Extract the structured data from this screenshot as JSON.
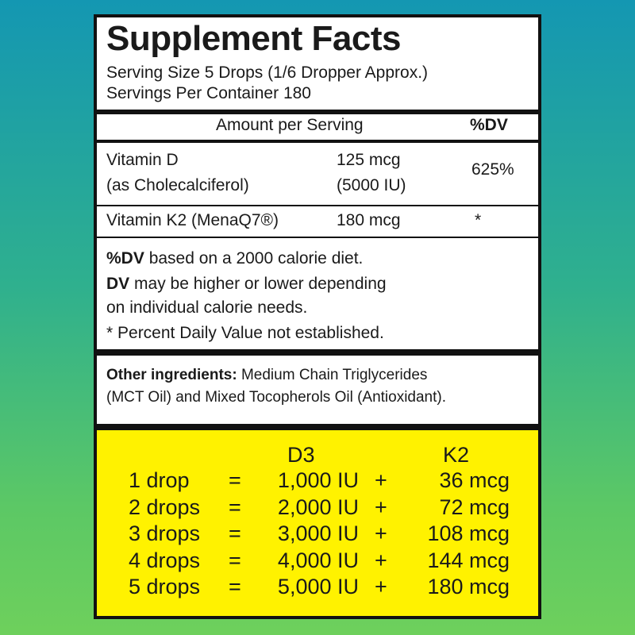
{
  "header": {
    "title": "Supplement Facts",
    "serving_size": "Serving Size 5 Drops (1/6 Dropper Approx.)",
    "servings_per_container": "Servings Per Container 180"
  },
  "columns": {
    "amount": "Amount per Serving",
    "dv": "%DV"
  },
  "nutrients": [
    {
      "name": "Vitamin D",
      "subname": "(as Cholecalciferol)",
      "amount": "125 mcg",
      "amount2": "(5000 IU)",
      "dv": "625%"
    },
    {
      "name": "Vitamin K2 (MenaQ7®)",
      "amount": "180 mcg",
      "dv": "*"
    }
  ],
  "notes": {
    "line1_bold": "%DV",
    "line1": " based on a 2000 calorie diet.",
    "line2_bold": "DV",
    "line2": " may be higher or lower depending",
    "line3": "on individual calorie needs.",
    "line4": "* Percent Daily Value not established."
  },
  "other": {
    "label": "Other ingredients:",
    "text1": " Medium Chain Triglycerides",
    "text2": "(MCT Oil) and Mixed Tocopherols Oil (Antioxidant)."
  },
  "dosing": {
    "header_d3": "D3",
    "header_k2": "K2",
    "rows": [
      {
        "drops": "1 drop",
        "eq": "=",
        "d3": "1,000 IU",
        "plus": "+",
        "k2": "36 mcg"
      },
      {
        "drops": "2 drops",
        "eq": "=",
        "d3": "2,000 IU",
        "plus": "+",
        "k2": "72 mcg"
      },
      {
        "drops": "3 drops",
        "eq": "=",
        "d3": "3,000 IU",
        "plus": "+",
        "k2": "108 mcg"
      },
      {
        "drops": "4 drops",
        "eq": "=",
        "d3": "4,000 IU",
        "plus": "+",
        "k2": "144 mcg"
      },
      {
        "drops": "5 drops",
        "eq": "=",
        "d3": "5,000 IU",
        "plus": "+",
        "k2": "180 mcg"
      }
    ]
  },
  "colors": {
    "yellow": "#fff200",
    "border": "#111111",
    "bg_top": "#1497b2",
    "bg_bottom": "#6ed05c"
  }
}
